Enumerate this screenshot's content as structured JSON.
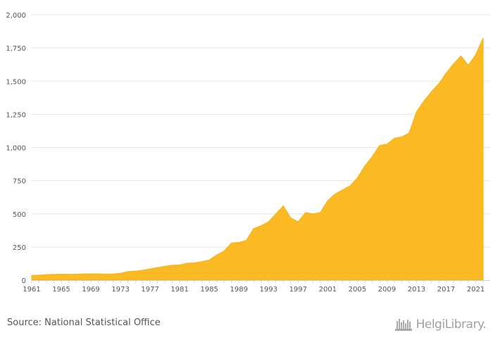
{
  "chart_data": {
    "type": "area",
    "title": "",
    "xlabel": "",
    "ylabel": "",
    "color": "#FBBA23",
    "grid": true,
    "legend": "none",
    "xlim": [
      1961,
      2022
    ],
    "ylim": [
      0,
      2000
    ],
    "x_ticks": [
      "1961",
      "1965",
      "1969",
      "1973",
      "1977",
      "1981",
      "1985",
      "1989",
      "1993",
      "1997",
      "2001",
      "2005",
      "2009",
      "2013",
      "2017",
      "2021"
    ],
    "y_ticks": [
      "0",
      "250",
      "500",
      "750",
      "1,000",
      "1,250",
      "1,500",
      "1,750",
      "2,000"
    ],
    "x": [
      1961,
      1962,
      1963,
      1964,
      1965,
      1966,
      1967,
      1968,
      1969,
      1970,
      1971,
      1972,
      1973,
      1974,
      1975,
      1976,
      1977,
      1978,
      1979,
      1980,
      1981,
      1982,
      1983,
      1984,
      1985,
      1986,
      1987,
      1988,
      1989,
      1990,
      1991,
      1992,
      1993,
      1994,
      1995,
      1996,
      1997,
      1998,
      1999,
      2000,
      2001,
      2002,
      2003,
      2004,
      2005,
      2006,
      2007,
      2008,
      2009,
      2010,
      2011,
      2012,
      2013,
      2014,
      2015,
      2016,
      2017,
      2018,
      2019,
      2020,
      2021,
      2022
    ],
    "values": [
      35,
      38,
      42,
      44,
      45,
      44,
      45,
      47,
      48,
      48,
      46,
      47,
      52,
      65,
      68,
      75,
      85,
      95,
      105,
      112,
      115,
      128,
      130,
      140,
      152,
      190,
      220,
      280,
      285,
      300,
      390,
      410,
      440,
      500,
      560,
      470,
      440,
      510,
      500,
      510,
      600,
      650,
      680,
      710,
      770,
      860,
      930,
      1015,
      1025,
      1070,
      1080,
      1110,
      1270,
      1350,
      1420,
      1480,
      1560,
      1630,
      1690,
      1620,
      1700,
      1825
    ]
  },
  "footer": {
    "source": "Source: National Statistical Office",
    "brand": "HelgiLibrary."
  }
}
